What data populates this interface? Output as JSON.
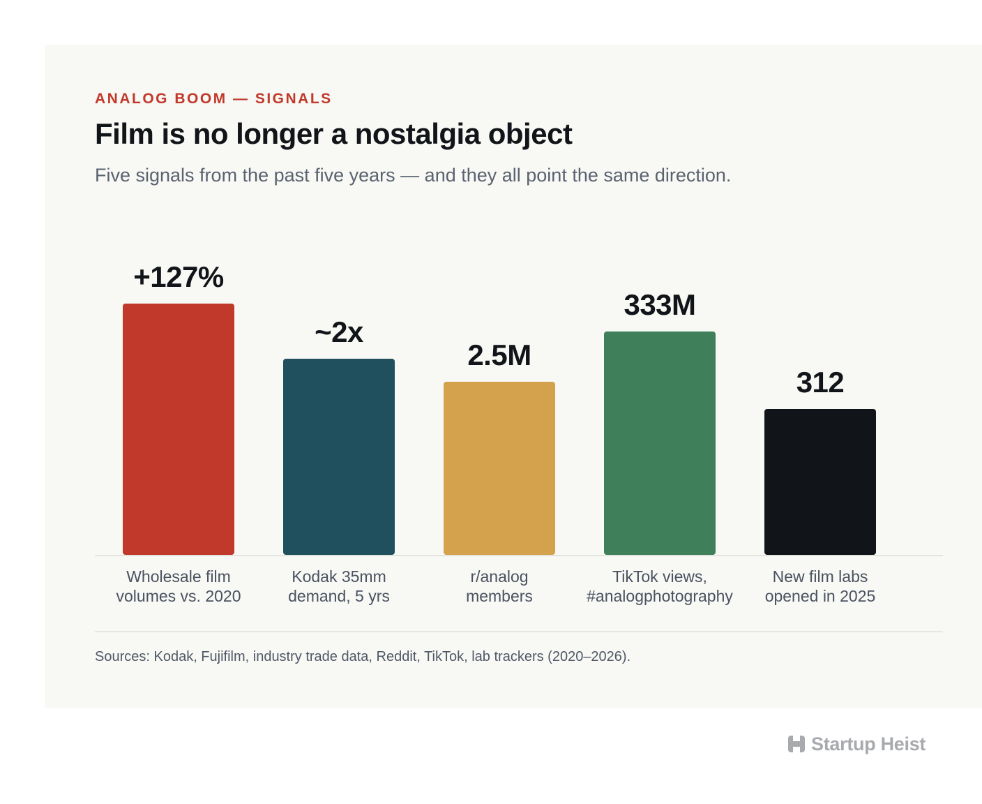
{
  "header": {
    "eyebrow": "ANALOG BOOM — SIGNALS",
    "title": "Film is no longer a nostalgia object",
    "subtitle": "Five signals from the past five years — and they all point the same direction."
  },
  "chart_data": {
    "type": "bar",
    "categories": [
      "Wholesale film volumes vs. 2020",
      "Kodak 35mm demand, 5 yrs",
      "r/analog members",
      "TikTok views, #analogphotography",
      "New film labs opened in 2025"
    ],
    "category_lines": [
      [
        "Wholesale film",
        "volumes vs. 2020"
      ],
      [
        "Kodak 35mm",
        "demand, 5 yrs"
      ],
      [
        "r/analog",
        "members"
      ],
      [
        "TikTok views,",
        "#analogphotography"
      ],
      [
        "New film labs",
        "opened in 2025"
      ]
    ],
    "value_labels": [
      "+127%",
      "~2x",
      "2.5M",
      "333M",
      "312"
    ],
    "relative_heights": [
      1.0,
      0.78,
      0.69,
      0.89,
      0.58
    ],
    "colors": [
      "#c0392b",
      "#204f5e",
      "#d4a24c",
      "#3f7f5a",
      "#111418"
    ],
    "title": "",
    "xlabel": "",
    "ylabel": "",
    "grid": false,
    "legend": "none"
  },
  "footer": {
    "source": "Sources: Kodak, Fujifilm, industry trade data, Reddit, TikTok, lab trackers (2020–2026).",
    "brand": "Startup Heist",
    "brand_icon": "h-logo-icon"
  }
}
